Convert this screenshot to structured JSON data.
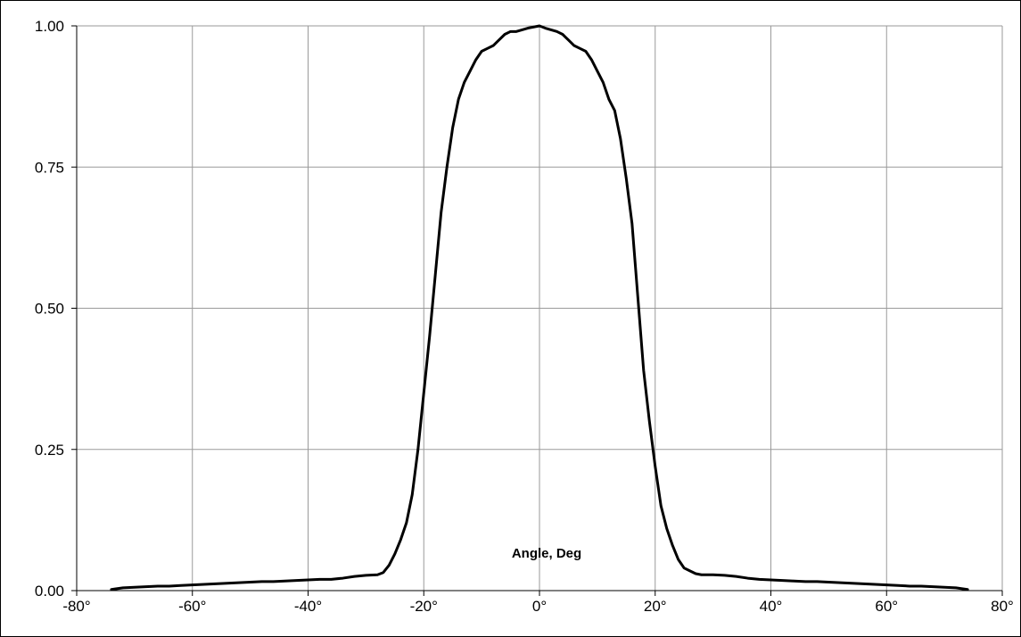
{
  "chart_data": {
    "type": "line",
    "title": "",
    "xlabel": "Angle, Deg",
    "ylabel": "",
    "xlim": [
      -80,
      80
    ],
    "ylim": [
      0,
      1
    ],
    "grid": true,
    "x_ticks": [
      -80,
      -60,
      -40,
      -20,
      0,
      20,
      40,
      60,
      80
    ],
    "x_tick_labels": [
      "-80°",
      "-60°",
      "-40°",
      "-20°",
      "0°",
      "20°",
      "40°",
      "60°",
      "80°"
    ],
    "y_ticks": [
      0,
      0.25,
      0.5,
      0.75,
      1.0
    ],
    "y_tick_labels": [
      "0.00",
      "0.25",
      "0.50",
      "0.75",
      "1.00"
    ],
    "line_color": "#000000",
    "series": [
      {
        "x": [
          -74,
          -72,
          -70,
          -68,
          -66,
          -64,
          -62,
          -60,
          -58,
          -56,
          -54,
          -52,
          -50,
          -48,
          -46,
          -44,
          -42,
          -40,
          -38,
          -36,
          -34,
          -32,
          -30,
          -28,
          -27,
          -26,
          -25,
          -24,
          -23,
          -22,
          -21,
          -20,
          -19,
          -18,
          -17,
          -16,
          -15,
          -14,
          -13,
          -12,
          -11,
          -10,
          -9,
          -8,
          -7,
          -6,
          -5,
          -4,
          -3,
          -2,
          -1,
          0,
          1,
          2,
          3,
          4,
          5,
          6,
          7,
          8,
          9,
          10,
          11,
          12,
          13,
          14,
          15,
          16,
          17,
          18,
          19,
          20,
          21,
          22,
          23,
          24,
          25,
          26,
          27,
          28,
          30,
          32,
          34,
          36,
          38,
          40,
          42,
          44,
          46,
          48,
          50,
          52,
          54,
          56,
          58,
          60,
          62,
          64,
          66,
          68,
          70,
          72,
          74
        ],
        "y": [
          0.002,
          0.005,
          0.006,
          0.007,
          0.008,
          0.008,
          0.009,
          0.01,
          0.011,
          0.012,
          0.013,
          0.014,
          0.015,
          0.016,
          0.016,
          0.017,
          0.018,
          0.019,
          0.02,
          0.02,
          0.022,
          0.025,
          0.027,
          0.028,
          0.032,
          0.045,
          0.065,
          0.09,
          0.12,
          0.17,
          0.25,
          0.35,
          0.45,
          0.56,
          0.67,
          0.75,
          0.82,
          0.87,
          0.9,
          0.92,
          0.94,
          0.955,
          0.96,
          0.965,
          0.975,
          0.985,
          0.99,
          0.99,
          0.993,
          0.996,
          0.998,
          1.0,
          0.996,
          0.993,
          0.99,
          0.985,
          0.975,
          0.965,
          0.96,
          0.955,
          0.94,
          0.92,
          0.9,
          0.87,
          0.85,
          0.8,
          0.73,
          0.65,
          0.52,
          0.39,
          0.3,
          0.22,
          0.15,
          0.11,
          0.08,
          0.055,
          0.04,
          0.035,
          0.03,
          0.028,
          0.028,
          0.027,
          0.025,
          0.022,
          0.02,
          0.019,
          0.018,
          0.017,
          0.016,
          0.016,
          0.015,
          0.014,
          0.013,
          0.012,
          0.011,
          0.01,
          0.009,
          0.008,
          0.008,
          0.007,
          0.006,
          0.005,
          0.002
        ]
      }
    ]
  }
}
